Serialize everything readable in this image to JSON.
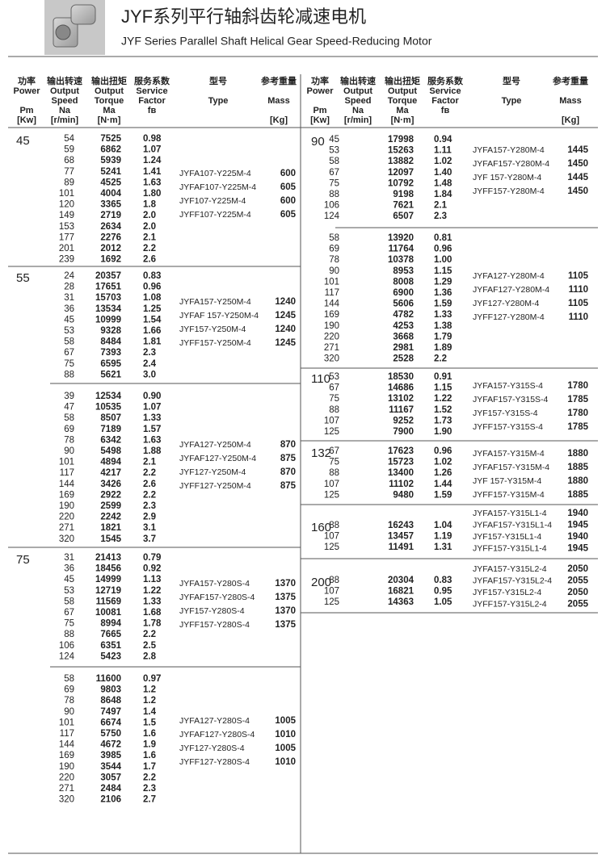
{
  "header": {
    "title_cn": "JYF系列平行轴斜齿轮减速电机",
    "title_en": "JYF Series Parallel Shaft Helical Gear Speed-Reducing Motor"
  },
  "columns": [
    {
      "lines": [
        "功率",
        "Power",
        "Pm",
        "[Kw]"
      ]
    },
    {
      "lines": [
        "输出转速",
        "Output",
        "Speed",
        "Na",
        "[r/min]"
      ]
    },
    {
      "lines": [
        "输出扭矩",
        "Output",
        "Torque",
        "Ma",
        "[N·m]"
      ]
    },
    {
      "lines": [
        "服务系数",
        "Service",
        "Factor",
        "fв"
      ]
    },
    {
      "lines": [
        "型号",
        "Type"
      ]
    },
    {
      "lines": [
        "参考重量",
        "Mass",
        "[Kg]"
      ]
    }
  ],
  "left_sections": [
    {
      "power": "45",
      "blocks": [
        {
          "rows": [
            [
              "54",
              "7525",
              "0.98"
            ],
            [
              "59",
              "6862",
              "1.07"
            ],
            [
              "68",
              "5939",
              "1.24"
            ],
            [
              "77",
              "5241",
              "1.41"
            ],
            [
              "89",
              "4525",
              "1.63"
            ],
            [
              "101",
              "4004",
              "1.80"
            ],
            [
              "120",
              "3365",
              "1.8"
            ],
            [
              "149",
              "2719",
              "2.0"
            ],
            [
              "153",
              "2634",
              "2.0"
            ],
            [
              "177",
              "2276",
              "2.1"
            ],
            [
              "201",
              "2012",
              "2.2"
            ],
            [
              "239",
              "1692",
              "2.6"
            ]
          ],
          "models": [
            [
              "JYFA107-Y225M-4",
              "600"
            ],
            [
              "JYFAF107-Y225M-4",
              "605"
            ],
            [
              "JYF107-Y225M-4",
              "600"
            ],
            [
              "JYFF107-Y225M-4",
              "605"
            ]
          ]
        }
      ]
    },
    {
      "power": "55",
      "blocks": [
        {
          "rows": [
            [
              "24",
              "20357",
              "0.83"
            ],
            [
              "28",
              "17651",
              "0.96"
            ],
            [
              "31",
              "15703",
              "1.08"
            ],
            [
              "36",
              "13534",
              "1.25"
            ],
            [
              "45",
              "10999",
              "1.54"
            ],
            [
              "53",
              "9328",
              "1.66"
            ],
            [
              "58",
              "8484",
              "1.81"
            ],
            [
              "67",
              "7393",
              "2.3"
            ],
            [
              "75",
              "6595",
              "2.4"
            ],
            [
              "88",
              "5621",
              "3.0"
            ]
          ],
          "models": [
            [
              "JYFA157-Y250M-4",
              "1240"
            ],
            [
              "JYFAF 157-Y250M-4",
              "1245"
            ],
            [
              "JYF157-Y250M-4",
              "1240"
            ],
            [
              "JYFF157-Y250M-4",
              "1245"
            ]
          ]
        },
        {
          "rows": [
            [
              "39",
              "12534",
              "0.90"
            ],
            [
              "47",
              "10535",
              "1.07"
            ],
            [
              "58",
              "8507",
              "1.33"
            ],
            [
              "69",
              "7189",
              "1.57"
            ],
            [
              "78",
              "6342",
              "1.63"
            ],
            [
              "90",
              "5498",
              "1.88"
            ],
            [
              "101",
              "4894",
              "2.1"
            ],
            [
              "117",
              "4217",
              "2.2"
            ],
            [
              "144",
              "3426",
              "2.6"
            ],
            [
              "169",
              "2922",
              "2.2"
            ],
            [
              "190",
              "2599",
              "2.3"
            ],
            [
              "220",
              "2242",
              "2.9"
            ],
            [
              "271",
              "1821",
              "3.1"
            ],
            [
              "320",
              "1545",
              "3.7"
            ]
          ],
          "models": [
            [
              "JYFA127-Y250M-4",
              "870"
            ],
            [
              "JYFAF127-Y250M-4",
              "875"
            ],
            [
              "JYF127-Y250M-4",
              "870"
            ],
            [
              "JYFF127-Y250M-4",
              "875"
            ]
          ]
        }
      ]
    },
    {
      "power": "75",
      "blocks": [
        {
          "rows": [
            [
              "31",
              "21413",
              "0.79"
            ],
            [
              "36",
              "18456",
              "0.92"
            ],
            [
              "45",
              "14999",
              "1.13"
            ],
            [
              "53",
              "12719",
              "1.22"
            ],
            [
              "58",
              "11569",
              "1.33"
            ],
            [
              "67",
              "10081",
              "1.68"
            ],
            [
              "75",
              "8994",
              "1.78"
            ],
            [
              "88",
              "7665",
              "2.2"
            ],
            [
              "106",
              "6351",
              "2.5"
            ],
            [
              "124",
              "5423",
              "2.8"
            ]
          ],
          "models": [
            [
              "JYFA157-Y280S-4",
              "1370"
            ],
            [
              "JYFAF157-Y280S-4",
              "1375"
            ],
            [
              "JYF157-Y280S-4",
              "1370"
            ],
            [
              "JYFF157-Y280S-4",
              "1375"
            ]
          ]
        },
        {
          "rows": [
            [
              "58",
              "11600",
              "0.97"
            ],
            [
              "69",
              "9803",
              "1.2"
            ],
            [
              "78",
              "8648",
              "1.2"
            ],
            [
              "90",
              "7497",
              "1.4"
            ],
            [
              "101",
              "6674",
              "1.5"
            ],
            [
              "117",
              "5750",
              "1.6"
            ],
            [
              "144",
              "4672",
              "1.9"
            ],
            [
              "169",
              "3985",
              "1.6"
            ],
            [
              "190",
              "3544",
              "1.7"
            ],
            [
              "220",
              "3057",
              "2.2"
            ],
            [
              "271",
              "2484",
              "2.3"
            ],
            [
              "320",
              "2106",
              "2.7"
            ]
          ],
          "models": [
            [
              "JYFA127-Y280S-4",
              "1005"
            ],
            [
              "JYFAF127-Y280S-4",
              "1010"
            ],
            [
              "JYF127-Y280S-4",
              "1005"
            ],
            [
              "JYFF127-Y280S-4",
              "1010"
            ]
          ]
        }
      ]
    }
  ],
  "right_sections": [
    {
      "power": "90",
      "blocks": [
        {
          "rows": [
            [
              "45",
              "17998",
              "0.94"
            ],
            [
              "53",
              "15263",
              "1.11"
            ],
            [
              "58",
              "13882",
              "1.02"
            ],
            [
              "67",
              "12097",
              "1.40"
            ],
            [
              "75",
              "10792",
              "1.48"
            ],
            [
              "88",
              "9198",
              "1.84"
            ],
            [
              "106",
              "7621",
              "2.1"
            ],
            [
              "124",
              "6507",
              "2.3"
            ]
          ],
          "models": [
            [
              "JYFA157-Y280M-4",
              "1445"
            ],
            [
              "JYFAF157-Y280M-4",
              "1450"
            ],
            [
              "JYF 157-Y280M-4",
              "1445"
            ],
            [
              "JYFF157-Y280M-4",
              "1450"
            ]
          ]
        },
        {
          "rows": [
            [
              "58",
              "13920",
              "0.81"
            ],
            [
              "69",
              "11764",
              "0.96"
            ],
            [
              "78",
              "10378",
              "1.00"
            ],
            [
              "90",
              "8953",
              "1.15"
            ],
            [
              "101",
              "8008",
              "1.29"
            ],
            [
              "117",
              "6900",
              "1.36"
            ],
            [
              "144",
              "5606",
              "1.59"
            ],
            [
              "169",
              "4782",
              "1.33"
            ],
            [
              "190",
              "4253",
              "1.38"
            ],
            [
              "220",
              "3668",
              "1.79"
            ],
            [
              "271",
              "2981",
              "1.89"
            ],
            [
              "320",
              "2528",
              "2.2"
            ]
          ],
          "models": [
            [
              "JYFA127-Y280M-4",
              "1105"
            ],
            [
              "JYFAF127-Y280M-4",
              "1110"
            ],
            [
              "JYF127-Y280M-4",
              "1105"
            ],
            [
              "JYFF127-Y280M-4",
              "1110"
            ]
          ]
        }
      ]
    },
    {
      "power": "110",
      "blocks": [
        {
          "rows": [
            [
              "53",
              "18530",
              "0.91"
            ],
            [
              "67",
              "14686",
              "1.15"
            ],
            [
              "75",
              "13102",
              "1.22"
            ],
            [
              "88",
              "11167",
              "1.52"
            ],
            [
              "107",
              "9252",
              "1.73"
            ],
            [
              "125",
              "7900",
              "1.90"
            ]
          ],
          "models": [
            [
              "JYFA157-Y315S-4",
              "1780"
            ],
            [
              "JYFAF157-Y315S-4",
              "1785"
            ],
            [
              "JYF157-Y315S-4",
              "1780"
            ],
            [
              "JYFF157-Y315S-4",
              "1785"
            ]
          ]
        }
      ]
    },
    {
      "power": "132",
      "blocks": [
        {
          "rows": [
            [
              "67",
              "17623",
              "0.96"
            ],
            [
              "75",
              "15723",
              "1.02"
            ],
            [
              "88",
              "13400",
              "1.26"
            ],
            [
              "107",
              "11102",
              "1.44"
            ],
            [
              "125",
              "9480",
              "1.59"
            ]
          ],
          "models": [
            [
              "JYFA157-Y315M-4",
              "1880"
            ],
            [
              "JYFAF157-Y315M-4",
              "1885"
            ],
            [
              "JYF 157-Y315M-4",
              "1880"
            ],
            [
              "JYFF157-Y315M-4",
              "1885"
            ]
          ]
        }
      ]
    },
    {
      "power": "160",
      "blocks": [
        {
          "rows": [
            [
              "88",
              "16243",
              "1.04"
            ],
            [
              "107",
              "13457",
              "1.19"
            ],
            [
              "125",
              "11491",
              "1.31"
            ]
          ],
          "models": [
            [
              "JYFA157-Y315L1-4",
              "1940"
            ],
            [
              "JYFAF157-Y315L1-4",
              "1945"
            ],
            [
              "JYF157-Y315L1-4",
              "1940"
            ],
            [
              "JYFF157-Y315L1-4",
              "1945"
            ]
          ]
        }
      ]
    },
    {
      "power": "200",
      "blocks": [
        {
          "rows": [
            [
              "88",
              "20304",
              "0.83"
            ],
            [
              "107",
              "16821",
              "0.95"
            ],
            [
              "125",
              "14363",
              "1.05"
            ]
          ],
          "models": [
            [
              "JYFA157-Y315L2-4",
              "2050"
            ],
            [
              "JYFAF157-Y315L2-4",
              "2055"
            ],
            [
              "JYF157-Y315L2-4",
              "2050"
            ],
            [
              "JYFF157-Y315L2-4",
              "2055"
            ]
          ]
        }
      ]
    }
  ]
}
